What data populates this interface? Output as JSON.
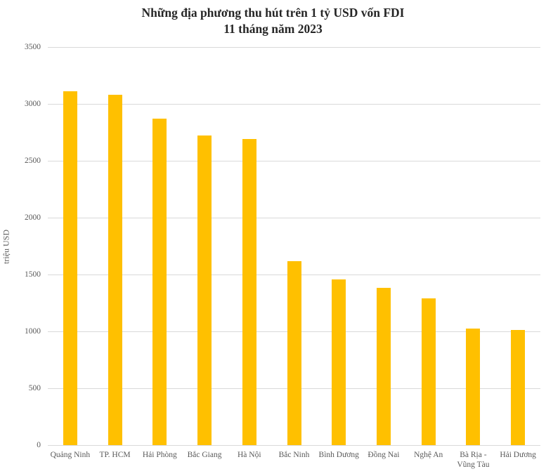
{
  "chart_data": {
    "type": "bar",
    "title": "Những địa phương thu hút trên 1 tỷ USD vốn FDI",
    "subtitle": "11 tháng năm 2023",
    "categories": [
      "Quảng Ninh",
      "TP. HCM",
      "Hải Phòng",
      "Bắc Giang",
      "Hà Nội",
      "Bắc Ninh",
      "Bình Dương",
      "Đồng Nai",
      "Nghệ An",
      "Bà Rịa - Vũng Tàu",
      "Hải Dương"
    ],
    "values": [
      3110,
      3080,
      2870,
      2720,
      2690,
      1615,
      1455,
      1385,
      1290,
      1025,
      1015
    ],
    "xlabel": "",
    "ylabel": "triệu USD",
    "ylim": [
      0,
      3500
    ],
    "yticks": [
      0,
      500,
      1000,
      1500,
      2000,
      2500,
      3000,
      3500
    ],
    "grid": true,
    "legend": "none",
    "bar_color": "#FFC000",
    "gridline_color": "#D9D9D9",
    "tick_label_color": "#595959",
    "title_color": "#262626"
  }
}
